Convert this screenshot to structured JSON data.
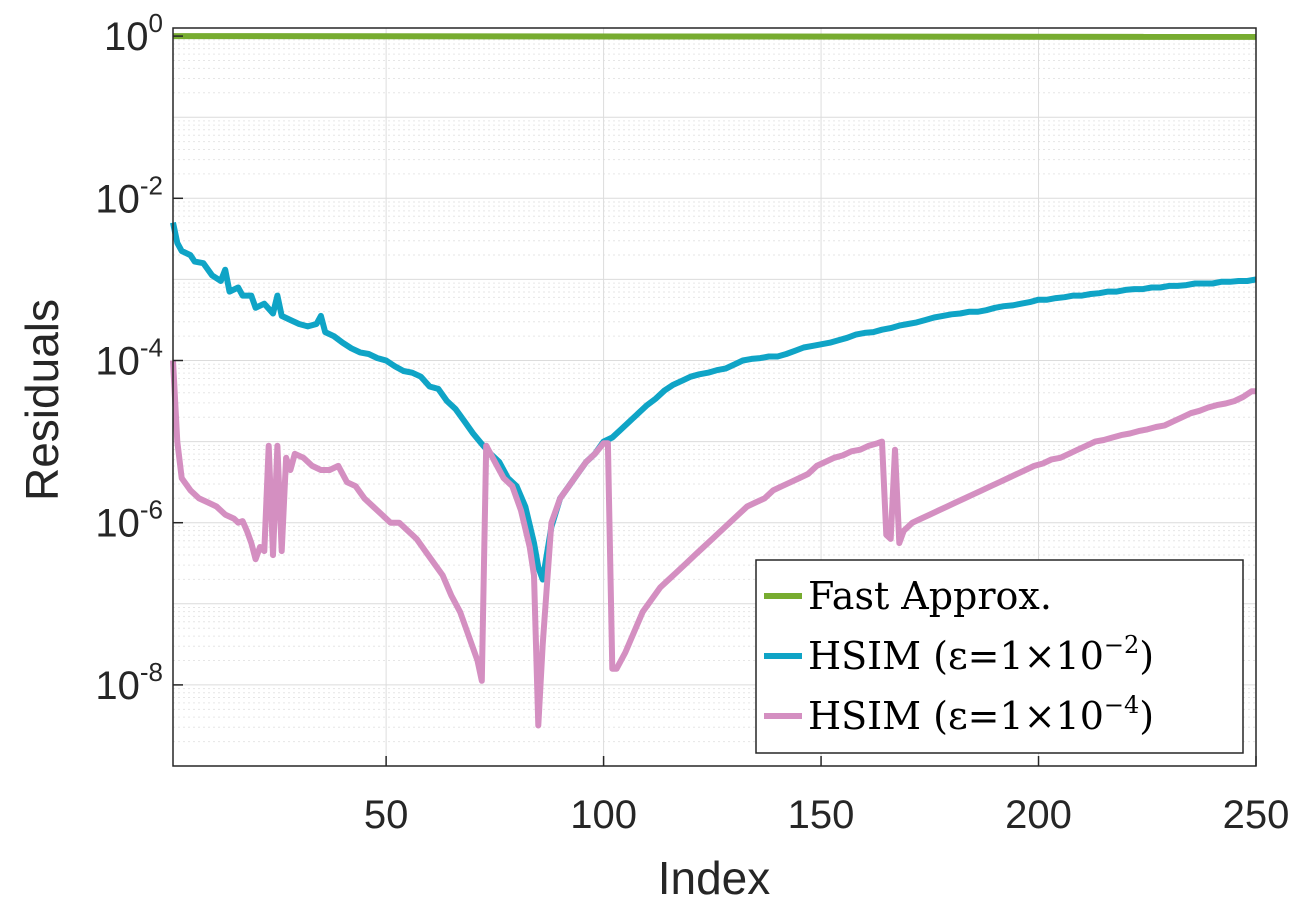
{
  "chart_data": {
    "type": "line",
    "xlabel": "Index",
    "ylabel": "Residuals",
    "xlim": [
      1,
      250
    ],
    "ylim_log10": [
      -9,
      0.1
    ],
    "yscale": "log",
    "grid": true,
    "minor_grid": true,
    "legend_position": "bottom-right",
    "x_ticks": [
      50,
      100,
      150,
      200,
      250
    ],
    "y_ticks": [
      {
        "base": "10",
        "exp": "0",
        "log10": 0
      },
      {
        "base": "10",
        "exp": "-2",
        "log10": -2
      },
      {
        "base": "10",
        "exp": "-4",
        "log10": -4
      },
      {
        "base": "10",
        "exp": "-6",
        "log10": -6
      },
      {
        "base": "10",
        "exp": "-8",
        "log10": -8
      }
    ],
    "series": [
      {
        "name": "Fast Approx.",
        "legend_main": "Fast Approx.",
        "legend_sup": "",
        "legend_tail": "",
        "color": "#77AC30",
        "points": [
          [
            1,
            0.0
          ],
          [
            250,
            -0.01
          ]
        ]
      },
      {
        "name": "HSIM (ε=1×10^-2)",
        "legend_main": "HSIM (ε=1×10",
        "legend_sup": "−2",
        "legend_tail": ")",
        "color": "#0FA4C6",
        "points": [
          [
            1,
            -2.3
          ],
          [
            2,
            -2.55
          ],
          [
            3,
            -2.65
          ],
          [
            5,
            -2.7
          ],
          [
            6,
            -2.78
          ],
          [
            8,
            -2.8
          ],
          [
            10,
            -2.95
          ],
          [
            12,
            -3.02
          ],
          [
            13,
            -2.88
          ],
          [
            14,
            -3.15
          ],
          [
            16,
            -3.1
          ],
          [
            17,
            -3.2
          ],
          [
            19,
            -3.2
          ],
          [
            20,
            -3.35
          ],
          [
            22,
            -3.3
          ],
          [
            24,
            -3.42
          ],
          [
            25,
            -3.2
          ],
          [
            26,
            -3.45
          ],
          [
            28,
            -3.5
          ],
          [
            30,
            -3.55
          ],
          [
            32,
            -3.58
          ],
          [
            34,
            -3.55
          ],
          [
            35,
            -3.45
          ],
          [
            36,
            -3.65
          ],
          [
            38,
            -3.7
          ],
          [
            40,
            -3.78
          ],
          [
            42,
            -3.85
          ],
          [
            44,
            -3.9
          ],
          [
            46,
            -3.92
          ],
          [
            48,
            -3.97
          ],
          [
            50,
            -4.0
          ],
          [
            52,
            -4.07
          ],
          [
            54,
            -4.13
          ],
          [
            56,
            -4.15
          ],
          [
            58,
            -4.2
          ],
          [
            60,
            -4.32
          ],
          [
            62,
            -4.35
          ],
          [
            64,
            -4.5
          ],
          [
            66,
            -4.6
          ],
          [
            68,
            -4.75
          ],
          [
            70,
            -4.9
          ],
          [
            72,
            -5.03
          ],
          [
            74,
            -5.15
          ],
          [
            76,
            -5.25
          ],
          [
            78,
            -5.45
          ],
          [
            80,
            -5.55
          ],
          [
            82,
            -5.8
          ],
          [
            84,
            -6.25
          ],
          [
            85,
            -6.55
          ],
          [
            86,
            -6.7
          ],
          [
            88,
            -6.05
          ],
          [
            90,
            -5.7
          ],
          [
            92,
            -5.55
          ],
          [
            94,
            -5.4
          ],
          [
            96,
            -5.25
          ],
          [
            98,
            -5.15
          ],
          [
            100,
            -5.0
          ],
          [
            102,
            -4.95
          ],
          [
            104,
            -4.85
          ],
          [
            106,
            -4.75
          ],
          [
            108,
            -4.65
          ],
          [
            110,
            -4.55
          ],
          [
            112,
            -4.47
          ],
          [
            114,
            -4.37
          ],
          [
            116,
            -4.3
          ],
          [
            118,
            -4.25
          ],
          [
            120,
            -4.2
          ],
          [
            122,
            -4.17
          ],
          [
            124,
            -4.15
          ],
          [
            126,
            -4.12
          ],
          [
            128,
            -4.1
          ],
          [
            130,
            -4.05
          ],
          [
            132,
            -4.0
          ],
          [
            134,
            -3.98
          ],
          [
            136,
            -3.97
          ],
          [
            138,
            -3.95
          ],
          [
            140,
            -3.95
          ],
          [
            142,
            -3.92
          ],
          [
            144,
            -3.88
          ],
          [
            146,
            -3.84
          ],
          [
            148,
            -3.82
          ],
          [
            150,
            -3.8
          ],
          [
            152,
            -3.78
          ],
          [
            154,
            -3.75
          ],
          [
            156,
            -3.72
          ],
          [
            158,
            -3.68
          ],
          [
            160,
            -3.66
          ],
          [
            162,
            -3.65
          ],
          [
            164,
            -3.62
          ],
          [
            166,
            -3.6
          ],
          [
            168,
            -3.57
          ],
          [
            170,
            -3.55
          ],
          [
            172,
            -3.53
          ],
          [
            174,
            -3.5
          ],
          [
            176,
            -3.47
          ],
          [
            178,
            -3.45
          ],
          [
            180,
            -3.43
          ],
          [
            182,
            -3.42
          ],
          [
            184,
            -3.4
          ],
          [
            186,
            -3.4
          ],
          [
            188,
            -3.38
          ],
          [
            190,
            -3.35
          ],
          [
            192,
            -3.33
          ],
          [
            194,
            -3.32
          ],
          [
            196,
            -3.3
          ],
          [
            198,
            -3.28
          ],
          [
            200,
            -3.25
          ],
          [
            202,
            -3.25
          ],
          [
            204,
            -3.23
          ],
          [
            206,
            -3.22
          ],
          [
            208,
            -3.2
          ],
          [
            210,
            -3.2
          ],
          [
            212,
            -3.18
          ],
          [
            214,
            -3.17
          ],
          [
            216,
            -3.15
          ],
          [
            218,
            -3.15
          ],
          [
            220,
            -3.13
          ],
          [
            222,
            -3.12
          ],
          [
            224,
            -3.12
          ],
          [
            226,
            -3.1
          ],
          [
            228,
            -3.1
          ],
          [
            230,
            -3.08
          ],
          [
            232,
            -3.08
          ],
          [
            234,
            -3.07
          ],
          [
            236,
            -3.05
          ],
          [
            238,
            -3.05
          ],
          [
            240,
            -3.05
          ],
          [
            242,
            -3.03
          ],
          [
            244,
            -3.03
          ],
          [
            246,
            -3.02
          ],
          [
            248,
            -3.02
          ],
          [
            250,
            -3.0
          ]
        ]
      },
      {
        "name": "HSIM (ε=1×10^-4)",
        "legend_main": "HSIM (ε=1×10",
        "legend_sup": "−4",
        "legend_tail": ")",
        "color": "#D48FC1",
        "points": [
          [
            1,
            -4.0
          ],
          [
            2,
            -5.0
          ],
          [
            3,
            -5.45
          ],
          [
            5,
            -5.6
          ],
          [
            7,
            -5.7
          ],
          [
            9,
            -5.75
          ],
          [
            11,
            -5.8
          ],
          [
            13,
            -5.9
          ],
          [
            15,
            -5.95
          ],
          [
            16,
            -6.0
          ],
          [
            17,
            -5.98
          ],
          [
            18,
            -6.1
          ],
          [
            19,
            -6.25
          ],
          [
            20,
            -6.45
          ],
          [
            21,
            -6.3
          ],
          [
            22,
            -6.35
          ],
          [
            23,
            -5.05
          ],
          [
            24,
            -6.4
          ],
          [
            25,
            -5.05
          ],
          [
            26,
            -6.35
          ],
          [
            27,
            -5.2
          ],
          [
            28,
            -5.35
          ],
          [
            29,
            -5.15
          ],
          [
            31,
            -5.2
          ],
          [
            33,
            -5.3
          ],
          [
            35,
            -5.35
          ],
          [
            37,
            -5.35
          ],
          [
            39,
            -5.3
          ],
          [
            41,
            -5.5
          ],
          [
            43,
            -5.55
          ],
          [
            45,
            -5.7
          ],
          [
            47,
            -5.8
          ],
          [
            49,
            -5.9
          ],
          [
            51,
            -6.0
          ],
          [
            53,
            -6.0
          ],
          [
            55,
            -6.1
          ],
          [
            57,
            -6.2
          ],
          [
            59,
            -6.35
          ],
          [
            61,
            -6.5
          ],
          [
            63,
            -6.65
          ],
          [
            65,
            -6.9
          ],
          [
            67,
            -7.1
          ],
          [
            69,
            -7.4
          ],
          [
            71,
            -7.7
          ],
          [
            72,
            -7.95
          ],
          [
            73,
            -5.05
          ],
          [
            75,
            -5.25
          ],
          [
            77,
            -5.45
          ],
          [
            79,
            -5.55
          ],
          [
            81,
            -5.85
          ],
          [
            83,
            -6.3
          ],
          [
            84,
            -6.65
          ],
          [
            85,
            -8.5
          ],
          [
            86,
            -7.5
          ],
          [
            88,
            -6.0
          ],
          [
            90,
            -5.7
          ],
          [
            92,
            -5.55
          ],
          [
            94,
            -5.4
          ],
          [
            96,
            -5.25
          ],
          [
            98,
            -5.15
          ],
          [
            100,
            -5.02
          ],
          [
            101,
            -5.02
          ],
          [
            102,
            -7.8
          ],
          [
            103,
            -7.8
          ],
          [
            105,
            -7.6
          ],
          [
            107,
            -7.35
          ],
          [
            109,
            -7.1
          ],
          [
            111,
            -6.95
          ],
          [
            113,
            -6.8
          ],
          [
            115,
            -6.7
          ],
          [
            117,
            -6.6
          ],
          [
            119,
            -6.5
          ],
          [
            121,
            -6.4
          ],
          [
            123,
            -6.3
          ],
          [
            125,
            -6.2
          ],
          [
            127,
            -6.1
          ],
          [
            129,
            -6.0
          ],
          [
            131,
            -5.9
          ],
          [
            133,
            -5.8
          ],
          [
            135,
            -5.75
          ],
          [
            137,
            -5.7
          ],
          [
            139,
            -5.6
          ],
          [
            141,
            -5.55
          ],
          [
            143,
            -5.5
          ],
          [
            145,
            -5.45
          ],
          [
            147,
            -5.4
          ],
          [
            149,
            -5.3
          ],
          [
            151,
            -5.25
          ],
          [
            153,
            -5.2
          ],
          [
            155,
            -5.17
          ],
          [
            157,
            -5.12
          ],
          [
            159,
            -5.1
          ],
          [
            161,
            -5.05
          ],
          [
            163,
            -5.02
          ],
          [
            164,
            -5.0
          ],
          [
            165,
            -6.15
          ],
          [
            166,
            -6.2
          ],
          [
            167,
            -5.1
          ],
          [
            168,
            -6.25
          ],
          [
            169,
            -6.1
          ],
          [
            171,
            -6.0
          ],
          [
            173,
            -5.95
          ],
          [
            175,
            -5.9
          ],
          [
            177,
            -5.85
          ],
          [
            179,
            -5.8
          ],
          [
            181,
            -5.75
          ],
          [
            183,
            -5.7
          ],
          [
            185,
            -5.65
          ],
          [
            187,
            -5.6
          ],
          [
            189,
            -5.55
          ],
          [
            191,
            -5.5
          ],
          [
            193,
            -5.45
          ],
          [
            195,
            -5.4
          ],
          [
            197,
            -5.35
          ],
          [
            199,
            -5.3
          ],
          [
            201,
            -5.27
          ],
          [
            203,
            -5.22
          ],
          [
            205,
            -5.2
          ],
          [
            207,
            -5.15
          ],
          [
            209,
            -5.1
          ],
          [
            211,
            -5.05
          ],
          [
            213,
            -5.0
          ],
          [
            215,
            -4.98
          ],
          [
            217,
            -4.95
          ],
          [
            219,
            -4.92
          ],
          [
            221,
            -4.9
          ],
          [
            223,
            -4.87
          ],
          [
            225,
            -4.85
          ],
          [
            227,
            -4.82
          ],
          [
            229,
            -4.8
          ],
          [
            231,
            -4.75
          ],
          [
            233,
            -4.7
          ],
          [
            235,
            -4.65
          ],
          [
            237,
            -4.62
          ],
          [
            239,
            -4.58
          ],
          [
            241,
            -4.55
          ],
          [
            243,
            -4.53
          ],
          [
            245,
            -4.5
          ],
          [
            247,
            -4.45
          ],
          [
            249,
            -4.38
          ],
          [
            250,
            -4.38
          ]
        ]
      }
    ]
  }
}
